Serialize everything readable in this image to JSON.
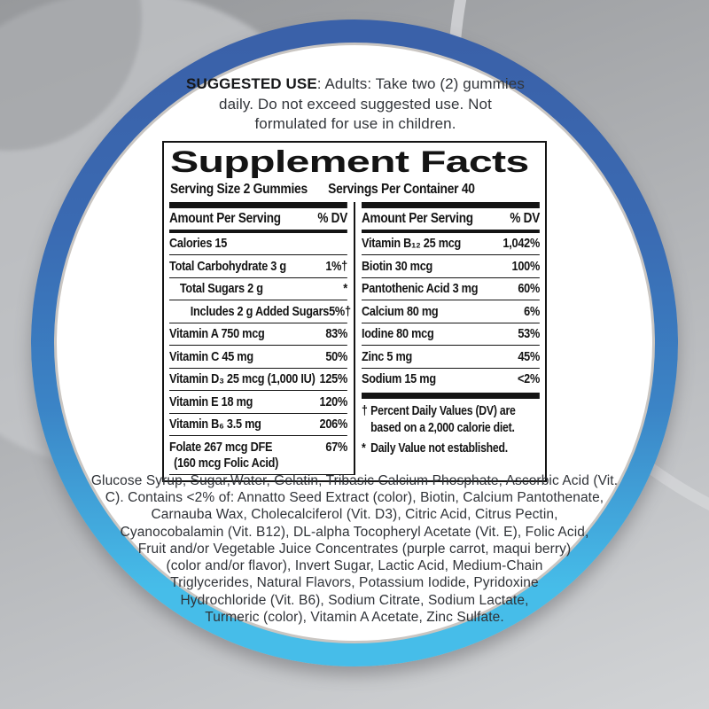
{
  "suggested_use": {
    "title": "SUGGESTED USE",
    "text": ": Adults: Take two (2) gummies daily. Do not exceed suggested use. Not formulated for use in children."
  },
  "facts": {
    "title": "Supplement Facts",
    "serving_size": "Serving Size 2 Gummies",
    "servings_per_container": "Servings Per Container 40",
    "left": {
      "header_label": "Amount Per Serving",
      "header_dv": "% DV",
      "rows": [
        {
          "label": "Calories 15",
          "value": ""
        },
        {
          "label": "Total Carbohydrate 3 g",
          "value": "1%†"
        },
        {
          "label": "Total Sugars 2 g",
          "value": "*"
        },
        {
          "label": "Includes 2 g Added Sugars",
          "value": "5%†"
        },
        {
          "label": "Vitamin A 750 mcg",
          "value": "83%"
        },
        {
          "label": "Vitamin C 45 mg",
          "value": "50%"
        },
        {
          "label": "Vitamin D₃ 25 mcg (1,000 IU)",
          "value": "125%"
        },
        {
          "label": "Vitamin E 18 mg",
          "value": "120%"
        },
        {
          "label": "Vitamin B₆ 3.5 mg",
          "value": "206%"
        },
        {
          "label": "Folate 267 mcg DFE",
          "label2": "(160 mcg Folic Acid)",
          "value": "67%"
        }
      ]
    },
    "right": {
      "header_label": "Amount Per Serving",
      "header_dv": "% DV",
      "rows": [
        {
          "label": "Vitamin B₁₂ 25 mcg",
          "value": "1,042%"
        },
        {
          "label": "Biotin 30 mcg",
          "value": "100%"
        },
        {
          "label": "Pantothenic Acid 3 mg",
          "value": "60%"
        },
        {
          "label": "Calcium 80 mg",
          "value": "6%"
        },
        {
          "label": "Iodine 80 mcg",
          "value": "53%"
        },
        {
          "label": "Zinc 5 mg",
          "value": "45%"
        },
        {
          "label": "Sodium 15 mg",
          "value": "<2%"
        }
      ],
      "footnotes": [
        {
          "symbol": "†",
          "text": "Percent Daily Values (DV) are based on a 2,000 calorie diet."
        },
        {
          "symbol": "*",
          "text": "Daily Value not established."
        }
      ]
    }
  },
  "ingredients": "Glucose Syrup, Sugar,Water, Gelatin, Tribasic Calcium Phosphate, Ascorbic Acid (Vit. C). Contains <2% of: Annatto Seed Extract (color), Biotin, Calcium Pantothenate, Carnauba Wax, Cholecalciferol (Vit. D3), Citric Acid, Citrus Pectin, Cyanocobalamin (Vit. B12), DL-alpha Tocopheryl Acetate (Vit. E), Folic Acid, Fruit and/or Vegetable Juice Concentrates (purple carrot, maqui berry) (color and/or flavor), Invert Sugar, Lactic Acid, Medium-Chain Triglycerides, Natural Flavors, Potassium Iodide, Pyridoxine Hydrochloride (Vit. B6), Sodium Citrate, Sodium Lactate, Turmeric (color), Vitamin A Acetate, Zinc Sulfate.",
  "colors": {
    "ring-top": "#3a61a9",
    "ring-mid": "#3b84c6",
    "ring-bottom": "#46bde9",
    "panel-ink": "#141414",
    "body-ink": "#303338",
    "disc-edge": "#cac6c2"
  }
}
